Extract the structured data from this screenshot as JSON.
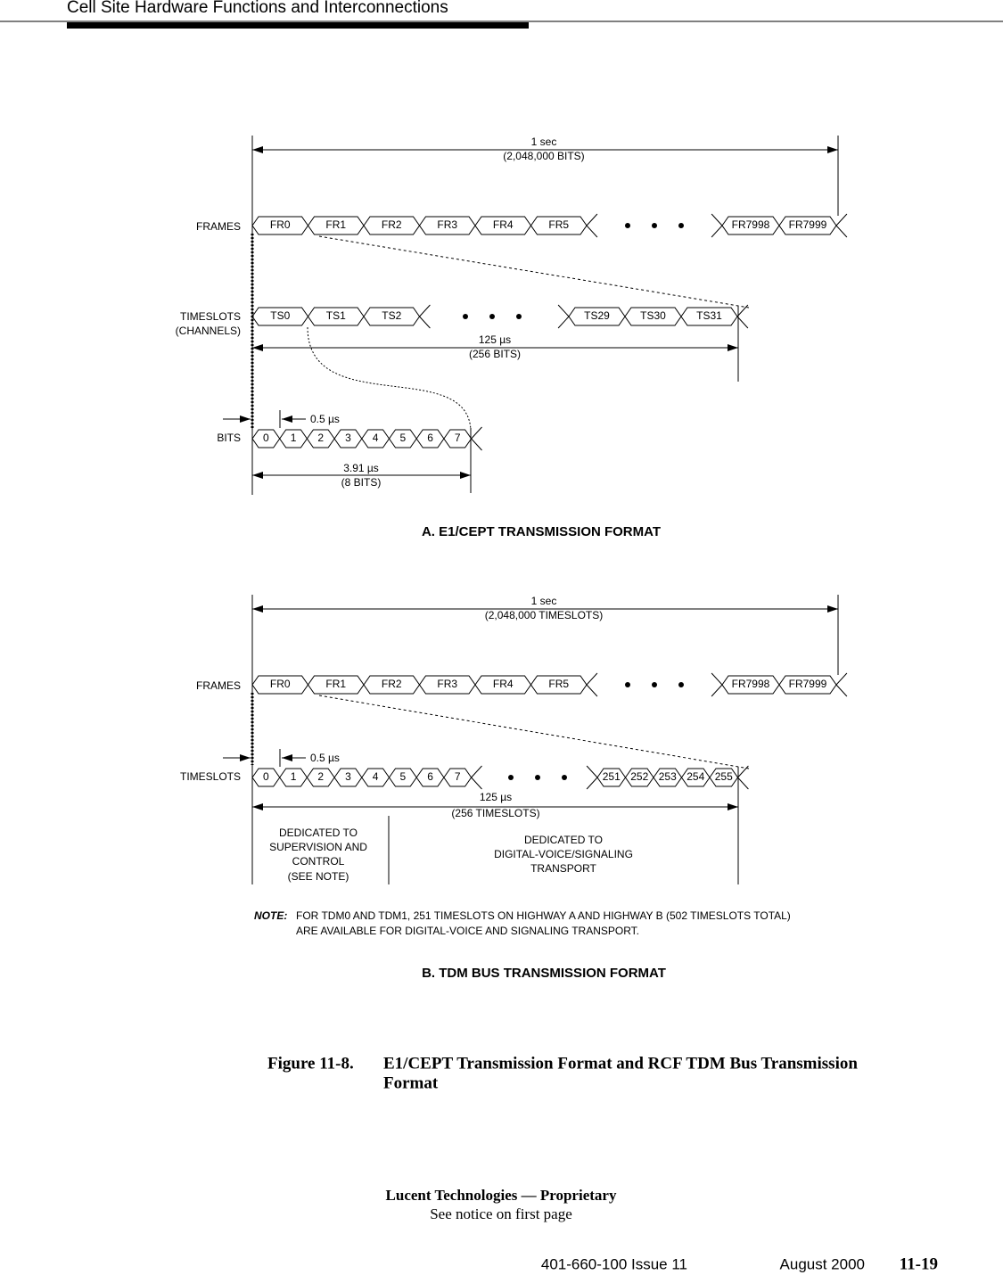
{
  "header": {
    "title": "Cell Site Hardware Functions and Interconnections"
  },
  "diagram_a": {
    "span_label": [
      "1 sec",
      "(2,048,000 BITS)"
    ],
    "frames_label": "FRAMES",
    "frames": [
      "FR0",
      "FR1",
      "FR2",
      "FR3",
      "FR4",
      "FR5"
    ],
    "frames_end": [
      "FR7998",
      "FR7999"
    ],
    "timeslots_label": [
      "TIMESLOTS",
      "(CHANNELS)"
    ],
    "timeslots": [
      "TS0",
      "TS1",
      "TS2"
    ],
    "timeslots_end": [
      "TS29",
      "TS30",
      "TS31"
    ],
    "frame_period": [
      "125 µs",
      "(256 BITS)"
    ],
    "bits_label": "BITS",
    "bit_time": "0.5 µs",
    "bits": [
      "0",
      "1",
      "2",
      "3",
      "4",
      "5",
      "6",
      "7"
    ],
    "byte_period": [
      "3.91 µs",
      "(8 BITS)"
    ],
    "caption": "A. E1/CEPT TRANSMISSION FORMAT"
  },
  "diagram_b": {
    "span_label": [
      "1 sec",
      "(2,048,000 TIMESLOTS)"
    ],
    "frames_label": "FRAMES",
    "frames": [
      "FR0",
      "FR1",
      "FR2",
      "FR3",
      "FR4",
      "FR5"
    ],
    "frames_end": [
      "FR7998",
      "FR7999"
    ],
    "timeslots_label": "TIMESLOTS",
    "bit_time": "0.5 µs",
    "timeslots": [
      "0",
      "1",
      "2",
      "3",
      "4",
      "5",
      "6",
      "7"
    ],
    "timeslots_end": [
      "251",
      "252",
      "253",
      "254",
      "255"
    ],
    "frame_period": [
      "125 µs",
      "(256 TIMESLOTS)"
    ],
    "dedicated_control": [
      "DEDICATED TO",
      "SUPERVISION AND",
      "CONTROL",
      "(SEE NOTE)"
    ],
    "dedicated_voice": [
      "DEDICATED TO",
      "DIGITAL-VOICE/SIGNALING",
      "TRANSPORT"
    ],
    "note_label": "NOTE:",
    "note": [
      "FOR TDM0 AND TDM1, 251 TIMESLOTS ON HIGHWAY A AND HIGHWAY B (502 TIMESLOTS TOTAL)",
      "ARE AVAILABLE FOR DIGITAL-VOICE AND SIGNALING TRANSPORT."
    ],
    "caption": "B. TDM BUS TRANSMISSION FORMAT"
  },
  "figure": {
    "number": "Figure 11-8.",
    "title": [
      "E1/CEPT Transmission Format and RCF TDM Bus Transmission",
      "Format"
    ]
  },
  "footer": {
    "company": "Lucent Technologies — Proprietary",
    "notice": "See notice on first page",
    "doc": "401-660-100 Issue 11",
    "date": "August 2000",
    "page": "11-19"
  }
}
